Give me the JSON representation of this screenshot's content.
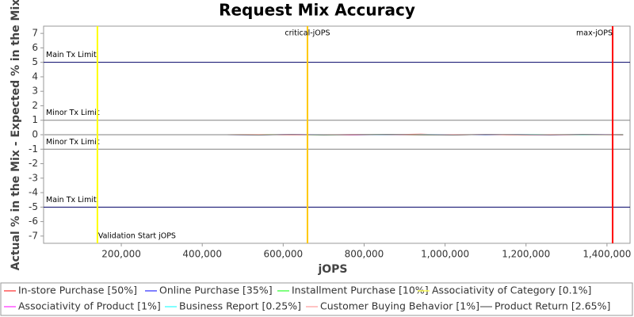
{
  "chart_data": {
    "type": "line",
    "title": "Request Mix Accuracy",
    "x_label": "jOPS",
    "y_label": "Actual % in the Mix - Expected % in the Mix",
    "xlim": [
      8000,
      1457000
    ],
    "ylim": [
      -7.5,
      7.5
    ],
    "xticks": [
      {
        "value": 200000,
        "label": "200,000"
      },
      {
        "value": 400000,
        "label": "400,000"
      },
      {
        "value": 600000,
        "label": "600,000"
      },
      {
        "value": 800000,
        "label": "800,000"
      },
      {
        "value": 1000000,
        "label": "1,000,000"
      },
      {
        "value": 1200000,
        "label": "1,200,000"
      },
      {
        "value": 1400000,
        "label": "1,400,000"
      }
    ],
    "yticks": [
      -7,
      -6,
      -5,
      -4,
      -3,
      -2,
      -1,
      0,
      1,
      2,
      3,
      4,
      5,
      6,
      7
    ],
    "horizontal_lines": [
      {
        "label": "Main Tx Limit",
        "value": 5,
        "color": "#000066"
      },
      {
        "label": "Minor Tx Limit",
        "value": 1,
        "color": "#808080"
      },
      {
        "label": "Minor Tx Limit",
        "value": -1,
        "color": "#808080"
      },
      {
        "label": "Main Tx Limit",
        "value": -5,
        "color": "#000066"
      }
    ],
    "vertical_lines": [
      {
        "label": "Validation Start jOPS",
        "value": 141000,
        "color": "#ffff00"
      },
      {
        "label": "critical-jOPS",
        "value": 660000,
        "color": "#ffc800"
      },
      {
        "label": "max-jOPS",
        "value": 1414000,
        "color": "#ff0000"
      }
    ],
    "x": [
      10000,
      460000,
      540000,
      620000,
      700000,
      780000,
      860000,
      940000,
      1020000,
      1100000,
      1180000,
      1260000,
      1340000,
      1440000
    ],
    "series": [
      {
        "name": "In-store Purchase [50%]",
        "color": "#ff5555",
        "values": [
          0,
          0,
          0.03,
          -0.02,
          0.02,
          -0.03,
          0.01,
          0.04,
          -0.02,
          0.02,
          -0.03,
          0.01,
          -0.02,
          0.02
        ]
      },
      {
        "name": "Online Purchase [35%]",
        "color": "#5555ff",
        "values": [
          0,
          0,
          -0.02,
          0.03,
          -0.01,
          0.02,
          -0.03,
          0.01,
          0.03,
          -0.02,
          0.02,
          -0.01,
          0.02,
          -0.01
        ]
      },
      {
        "name": "Installment Purchase [10%]",
        "color": "#55ff55",
        "values": [
          0,
          0,
          0.02,
          0.01,
          -0.02,
          0.01,
          0.02,
          -0.03,
          0.01,
          0.02,
          -0.01,
          0.03,
          -0.01,
          0.01
        ]
      },
      {
        "name": "Associativity of Category [0.1%]",
        "color": "#ffff55",
        "values": [
          0,
          0,
          0,
          0.01,
          0,
          -0.01,
          0,
          0.01,
          0,
          0,
          0.01,
          0,
          -0.01,
          0
        ]
      },
      {
        "name": "Associativity of Product [1%]",
        "color": "#ff55ff",
        "values": [
          0,
          0,
          -0.01,
          0.02,
          0.01,
          -0.02,
          0.01,
          0,
          -0.01,
          0.02,
          0,
          -0.02,
          0.01,
          0
        ]
      },
      {
        "name": "Business Report [0.25%]",
        "color": "#55ffff",
        "values": [
          0,
          0,
          0.01,
          -0.01,
          0.02,
          0,
          -0.02,
          0.01,
          0.02,
          -0.01,
          0.01,
          0.02,
          -0.02,
          0.01
        ]
      },
      {
        "name": "Customer Buying Behavior [1%]",
        "color": "#ffafaf",
        "values": [
          0,
          0,
          0.02,
          -0.03,
          0.01,
          0.03,
          -0.01,
          -0.02,
          0.02,
          0.01,
          -0.03,
          0.02,
          0.01,
          -0.02
        ]
      },
      {
        "name": "Product Return [2.65%]",
        "color": "#808080",
        "values": [
          0,
          0,
          -0.03,
          0.02,
          -0.02,
          0.01,
          0.03,
          -0.01,
          -0.03,
          0.02,
          0.01,
          -0.02,
          0.03,
          -0.01
        ]
      }
    ]
  }
}
